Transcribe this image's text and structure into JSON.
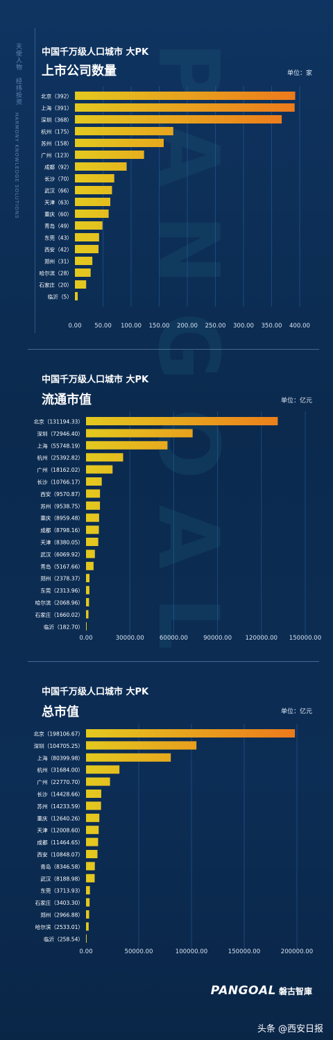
{
  "vertical_texts": [
    "天使人物",
    "经纬投资",
    "HARMONY KNOWLEDGE SOLUTIONS"
  ],
  "watermark_text": "PANGOAL",
  "footer": {
    "logo_en": "PANGOAL",
    "logo_cn": "磐古智庫"
  },
  "credit": "头条 @西安日报",
  "colors": {
    "bar_low": "#e3c91f",
    "bar_high": "#ec7a1c",
    "axis_text": "#d7e3f2",
    "label_text": "#ffffff"
  },
  "chart_data": [
    {
      "type": "bar",
      "orientation": "horizontal",
      "supertitle": "中国千万级人口城市  大PK",
      "title": "上市公司数量",
      "unit": "单位：家",
      "categories": [
        "北京",
        "上海",
        "深圳",
        "杭州",
        "苏州",
        "广州",
        "成都",
        "长沙",
        "武汉",
        "天津",
        "重庆",
        "青岛",
        "东莞",
        "西安",
        "郑州",
        "哈尔滨",
        "石家庄",
        "临沂"
      ],
      "category_labels": [
        "北京（392）",
        "上海（391）",
        "深圳（368）",
        "杭州（175）",
        "苏州（158）",
        "广州（123）",
        "成都（92）",
        "长沙（70）",
        "武汉（66）",
        "天津（63）",
        "重庆（60）",
        "青岛（49）",
        "东莞（43）",
        "西安（42）",
        "郑州（31）",
        "哈尔滨（28）",
        "石家庄（20）",
        "临沂（5）"
      ],
      "values": [
        392,
        391,
        368,
        175,
        158,
        123,
        92,
        70,
        66,
        63,
        60,
        49,
        43,
        42,
        31,
        28,
        20,
        5
      ],
      "xlim": [
        0,
        400
      ],
      "ticks": [
        0,
        50,
        100,
        150,
        200,
        250,
        300,
        350,
        400
      ],
      "tick_labels": [
        "0.00",
        "50.00",
        "100.00",
        "150.00",
        "200.00",
        "250.00",
        "300.00",
        "350.00",
        "400.00"
      ],
      "grid": true
    },
    {
      "type": "bar",
      "orientation": "horizontal",
      "supertitle": "中国千万级人口城市  大PK",
      "title": "流通市值",
      "unit": "单位：亿元",
      "categories": [
        "北京",
        "深圳",
        "上海",
        "杭州",
        "广州",
        "长沙",
        "西安",
        "苏州",
        "重庆",
        "成都",
        "天津",
        "武汉",
        "青岛",
        "郑州",
        "东莞",
        "哈尔滨",
        "石家庄",
        "临沂"
      ],
      "category_labels": [
        "北京（131194.33）",
        "深圳（72946.40）",
        "上海（55748.19）",
        "杭州（25392.82）",
        "广州（18162.02）",
        "长沙（10766.17）",
        "西安（9570.87）",
        "苏州（9538.75）",
        "重庆（8959.48）",
        "成都（8798.16）",
        "天津（8380.05）",
        "武汉（6069.92）",
        "青岛（5167.66）",
        "郑州（2378.37）",
        "东莞（2313.96）",
        "哈尔滨（2068.96）",
        "石家庄（1660.02）",
        "临沂（182.70）"
      ],
      "values": [
        131194.33,
        72946.4,
        55748.19,
        25392.82,
        18162.02,
        10766.17,
        9570.87,
        9538.75,
        8959.48,
        8798.16,
        8380.05,
        6069.92,
        5167.66,
        2378.37,
        2313.96,
        2068.96,
        1660.02,
        182.7
      ],
      "xlim": [
        0,
        150000
      ],
      "ticks": [
        0,
        30000,
        60000,
        90000,
        120000,
        150000
      ],
      "tick_labels": [
        "0.00",
        "30000.00",
        "60000.00",
        "90000.00",
        "120000.00",
        "150000.00"
      ],
      "grid": true
    },
    {
      "type": "bar",
      "orientation": "horizontal",
      "supertitle": "中国千万级人口城市  大PK",
      "title": "总市值",
      "unit": "单位：亿元",
      "categories": [
        "北京",
        "深圳",
        "上海",
        "杭州",
        "广州",
        "长沙",
        "苏州",
        "重庆",
        "天津",
        "成都",
        "西安",
        "青岛",
        "武汉",
        "东莞",
        "石家庄",
        "郑州",
        "哈尔滨",
        "临沂"
      ],
      "category_labels": [
        "北京（198106.67）",
        "深圳（104705.25）",
        "上海（80399.98）",
        "杭州（31684.00）",
        "广州（22770.70）",
        "长沙（14428.66）",
        "苏州（14233.59）",
        "重庆（12640.26）",
        "天津（12008.60）",
        "成都（11464.65）",
        "西安（10848.07）",
        "青岛（8346.58）",
        "武汉（8188.98）",
        "东莞（3713.93）",
        "石家庄（3403.30）",
        "郑州（2966.88）",
        "哈尔滨（2533.01）",
        "临沂（258.54）"
      ],
      "values": [
        198106.67,
        104705.25,
        80399.98,
        31684.0,
        22770.7,
        14428.66,
        14233.59,
        12640.26,
        12008.6,
        11464.65,
        10848.07,
        8346.58,
        8188.98,
        3713.93,
        3403.3,
        2966.88,
        2533.01,
        258.54
      ],
      "xlim": [
        0,
        200000
      ],
      "ticks": [
        0,
        50000,
        100000,
        150000,
        200000
      ],
      "tick_labels": [
        "0.00",
        "50000.00",
        "100000.00",
        "150000.00",
        "200000.00"
      ],
      "grid": true
    }
  ]
}
